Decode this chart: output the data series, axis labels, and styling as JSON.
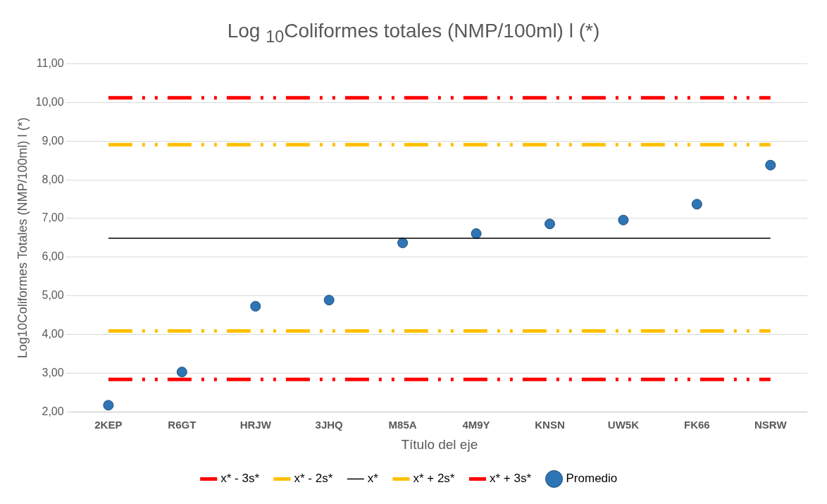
{
  "chart_data": {
    "type": "line",
    "title": "Log $_{10}$Coliformes totales (NMP/100ml) l (*)",
    "xlabel": "Título del eje",
    "ylabel": "Log10Coliformes Totales (NMP/100ml) l (*)",
    "categories": [
      "2KEP",
      "R6GT",
      "HRJW",
      "3JHQ",
      "M85A",
      "4M9Y",
      "KNSN",
      "UW5K",
      "FK66",
      "NSRW"
    ],
    "series": [
      {
        "name": "x* - 3s*",
        "color": "#ff0000",
        "line_style": "dashed",
        "marker": "none",
        "values": [
          2.84,
          2.84,
          2.84,
          2.84,
          2.84,
          2.84,
          2.84,
          2.84,
          2.84,
          2.84
        ]
      },
      {
        "name": "x* - 2s*",
        "color": "#ffc000",
        "line_style": "dashed",
        "marker": "none",
        "values": [
          4.09,
          4.09,
          4.09,
          4.09,
          4.09,
          4.09,
          4.09,
          4.09,
          4.09,
          4.09
        ]
      },
      {
        "name": "x*",
        "color": "#000000",
        "line_style": "solid",
        "marker": "none",
        "values": [
          6.49,
          6.49,
          6.49,
          6.49,
          6.49,
          6.49,
          6.49,
          6.49,
          6.49,
          6.49
        ]
      },
      {
        "name": "x* + 2s*",
        "color": "#ffc000",
        "line_style": "dashed",
        "marker": "none",
        "values": [
          8.91,
          8.91,
          8.91,
          8.91,
          8.91,
          8.91,
          8.91,
          8.91,
          8.91,
          8.91
        ]
      },
      {
        "name": "x* + 3s*",
        "color": "#ff0000",
        "line_style": "dashed",
        "marker": "none",
        "values": [
          10.12,
          10.12,
          10.12,
          10.12,
          10.12,
          10.12,
          10.12,
          10.12,
          10.12,
          10.12
        ]
      },
      {
        "name": "Promedio",
        "type": "scatter",
        "color": "#2e75b6",
        "marker": "circle",
        "values": [
          2.17,
          3.03,
          4.73,
          4.89,
          6.37,
          6.61,
          6.86,
          6.96,
          7.37,
          8.38
        ]
      }
    ],
    "ylim": [
      2,
      11
    ],
    "yticks": [
      {
        "value": 2,
        "label": "2,00"
      },
      {
        "value": 3,
        "label": "3,00"
      },
      {
        "value": 4,
        "label": "4,00"
      },
      {
        "value": 5,
        "label": "5,00"
      },
      {
        "value": 6,
        "label": "6,00"
      },
      {
        "value": 7,
        "label": "7,00"
      },
      {
        "value": 8,
        "label": "8,00"
      },
      {
        "value": 9,
        "label": "9,00"
      },
      {
        "value": 10,
        "label": "10,00"
      },
      {
        "value": 11,
        "label": "11,00"
      }
    ],
    "grid": "y",
    "legend": "bottom"
  }
}
